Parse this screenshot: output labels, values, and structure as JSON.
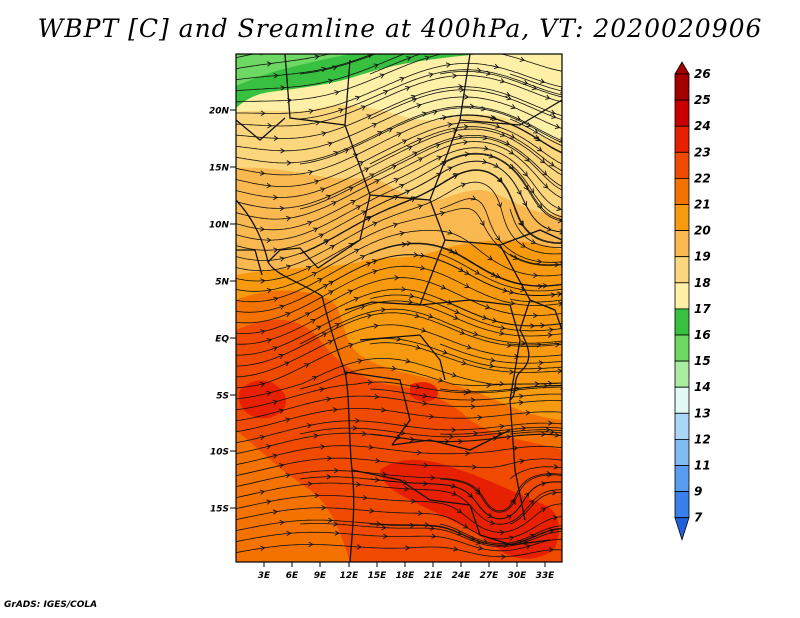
{
  "title": "WBPT [C] and Sreamline at 400hPa, VT: 2020020906",
  "credit": "GrADS: IGES/COLA",
  "map": {
    "lat_ticks": [
      "20N",
      "15N",
      "10N",
      "5N",
      "EQ",
      "5S",
      "10S",
      "15S"
    ],
    "lon_ticks": [
      "3E",
      "6E",
      "9E",
      "12E",
      "15E",
      "18E",
      "21E",
      "24E",
      "27E",
      "30E",
      "33E"
    ]
  },
  "colorbar": {
    "levels": [
      {
        "label": "26",
        "color": "#a50000"
      },
      {
        "label": "25",
        "color": "#c80000"
      },
      {
        "label": "24",
        "color": "#e62000"
      },
      {
        "label": "23",
        "color": "#f04a00"
      },
      {
        "label": "22",
        "color": "#f47200"
      },
      {
        "label": "21",
        "color": "#f79a10"
      },
      {
        "label": "20",
        "color": "#fab850"
      },
      {
        "label": "19",
        "color": "#fcd67c"
      },
      {
        "label": "18",
        "color": "#fff0a8"
      },
      {
        "label": "17",
        "color": "#38c040"
      },
      {
        "label": "16",
        "color": "#6ed864"
      },
      {
        "label": "15",
        "color": "#aaeca0"
      },
      {
        "label": "14",
        "color": "#e2f8f2"
      },
      {
        "label": "13",
        "color": "#aad6f8"
      },
      {
        "label": "12",
        "color": "#82baf4"
      },
      {
        "label": "11",
        "color": "#5a9cf0"
      },
      {
        "label": "9",
        "color": "#3a80ec"
      },
      {
        "label": "7",
        "color": "#2060dc"
      }
    ]
  }
}
